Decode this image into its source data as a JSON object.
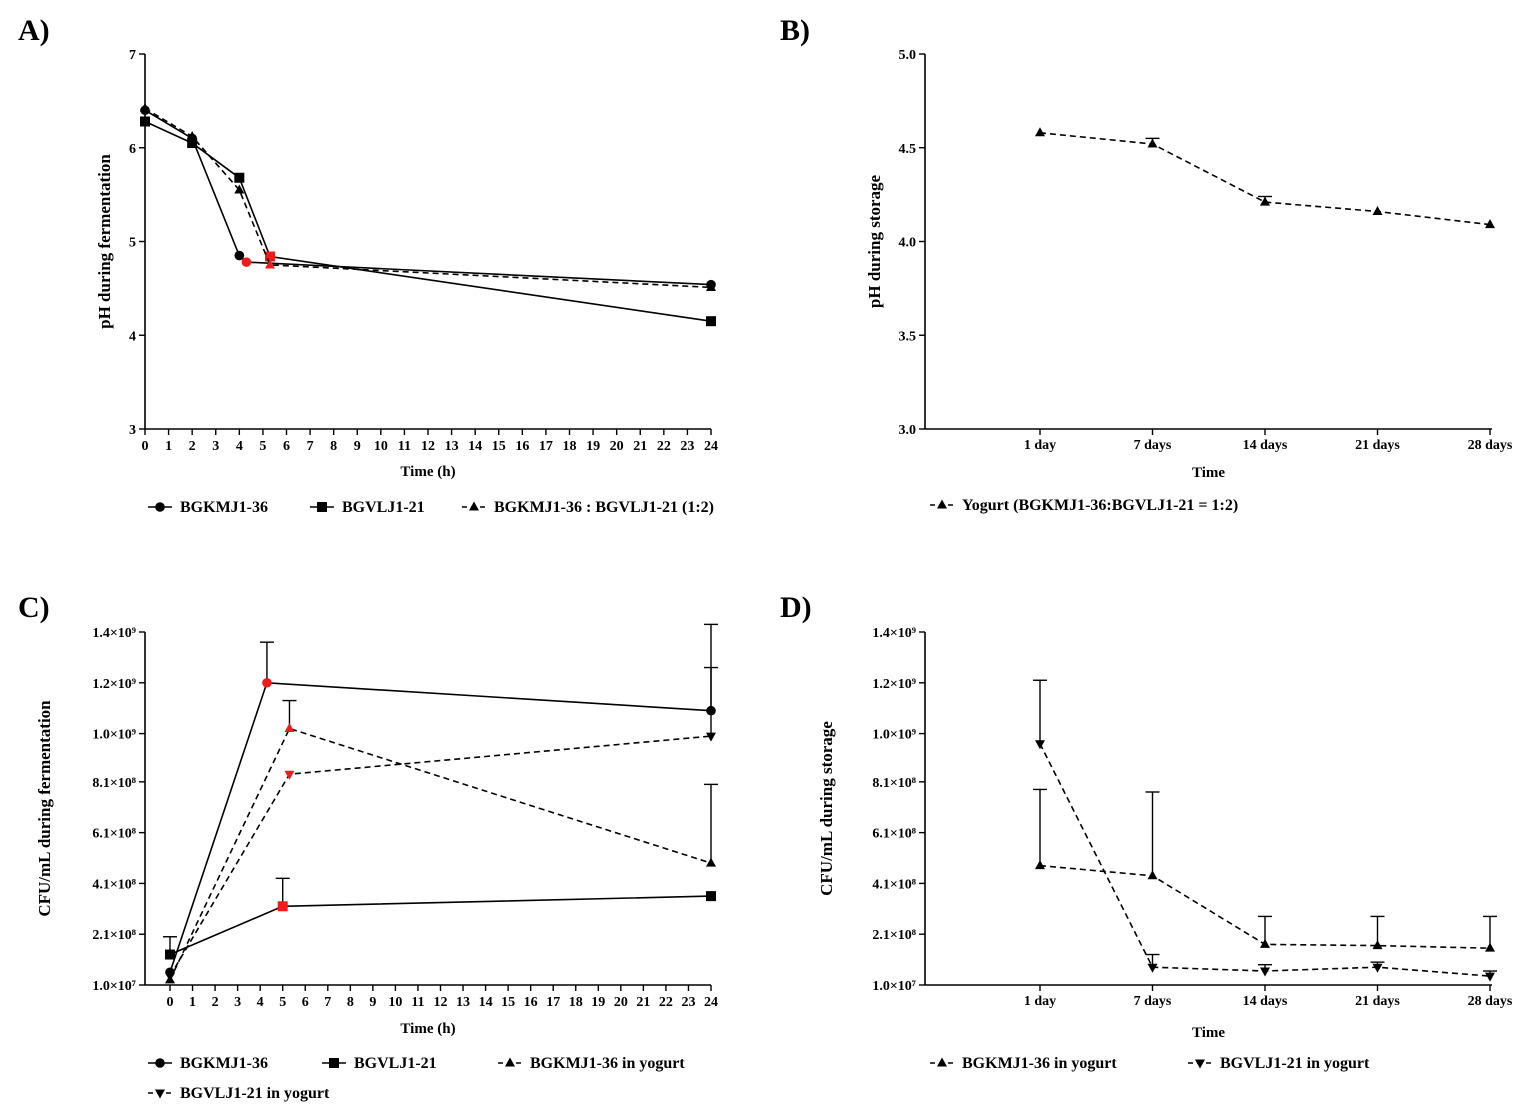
{
  "chart_data": [
    {
      "panel": "A)",
      "type": "line",
      "xlabel": "Time (h)",
      "ylabel": "pH during fermentation",
      "xlim": [
        0,
        24
      ],
      "ylim": [
        3,
        7
      ],
      "xticks": [
        0,
        1,
        2,
        3,
        4,
        5,
        6,
        7,
        8,
        9,
        10,
        11,
        12,
        13,
        14,
        15,
        16,
        17,
        18,
        19,
        20,
        21,
        22,
        23,
        24
      ],
      "yticks": [
        3,
        4,
        5,
        6,
        7
      ],
      "ytick_labels": [
        "3",
        "4",
        "5",
        "6",
        "7"
      ],
      "legend_rows": [
        [
          0,
          1,
          2
        ]
      ],
      "series": [
        {
          "name": "BGKMJ1-36",
          "marker": "circle",
          "dash": false,
          "points": [
            {
              "x": 0,
              "y": 6.4
            },
            {
              "x": 2,
              "y": 6.1
            },
            {
              "x": 4,
              "y": 4.85
            },
            {
              "x": 4.3,
              "y": 4.78,
              "red": true
            },
            {
              "x": 24,
              "y": 4.54
            }
          ]
        },
        {
          "name": "BGVLJ1-21",
          "marker": "square",
          "dash": false,
          "points": [
            {
              "x": 0,
              "y": 6.28
            },
            {
              "x": 2,
              "y": 6.05
            },
            {
              "x": 4,
              "y": 5.68
            },
            {
              "x": 5.3,
              "y": 4.84,
              "red": true
            },
            {
              "x": 24,
              "y": 4.15
            }
          ]
        },
        {
          "name": "BGKMJ1-36 : BGVLJ1-21 (1:2)",
          "marker": "triangle",
          "dash": true,
          "points": [
            {
              "x": 0,
              "y": 6.42
            },
            {
              "x": 2,
              "y": 6.12
            },
            {
              "x": 4,
              "y": 5.55
            },
            {
              "x": 5.3,
              "y": 4.75,
              "red": true
            },
            {
              "x": 24,
              "y": 4.51
            }
          ]
        }
      ]
    },
    {
      "panel": "B)",
      "type": "line",
      "xlabel": "Time",
      "ylabel": "pH during storage",
      "categories": [
        "1 day",
        "7 days",
        "14 days",
        "21 days",
        "28 days"
      ],
      "ylim": [
        3.0,
        5.0
      ],
      "yticks": [
        3.0,
        3.5,
        4.0,
        4.5,
        5.0
      ],
      "ytick_labels": [
        "3.0",
        "3.5",
        "4.0",
        "4.5",
        "5.0"
      ],
      "legend_rows": [
        [
          0
        ]
      ],
      "series": [
        {
          "name": "Yogurt (BGKMJ1-36:BGVLJ1-21 = 1:2)",
          "marker": "triangle",
          "dash": true,
          "values": [
            4.58,
            4.52,
            4.21,
            4.16,
            4.09
          ],
          "errors": [
            0,
            0.03,
            0.03,
            0,
            0
          ]
        }
      ]
    },
    {
      "panel": "C)",
      "type": "line",
      "xlabel": "Time (h)",
      "ylabel": "CFU/mL during fermentation",
      "xlim": [
        0,
        24
      ],
      "ylim": [
        10000000,
        1400000000
      ],
      "xticks": [
        0,
        1,
        2,
        3,
        4,
        5,
        6,
        7,
        8,
        9,
        10,
        11,
        12,
        13,
        14,
        15,
        16,
        17,
        18,
        19,
        20,
        21,
        22,
        23,
        24
      ],
      "yticks": [
        10000000,
        210000000,
        410000000,
        610000000,
        810000000,
        1000000000,
        1200000000,
        1400000000
      ],
      "ytick_labels": [
        "1.0×10⁷",
        "2.1×10⁸",
        "4.1×10⁸",
        "6.1×10⁸",
        "8.1×10⁸",
        "1.0×10⁹",
        "1.2×10⁹",
        "1.4×10⁹"
      ],
      "legend_rows": [
        [
          0,
          1,
          2
        ],
        [
          3
        ]
      ],
      "series": [
        {
          "name": "BGKMJ1-36",
          "marker": "circle",
          "dash": false,
          "points": [
            {
              "x": 0,
              "y": 60000000
            },
            {
              "x": 4.3,
              "y": 1200000000,
              "red": true,
              "err": 160000000
            },
            {
              "x": 24,
              "y": 1090000000,
              "err": 340000000
            }
          ]
        },
        {
          "name": "BGVLJ1-21",
          "marker": "square",
          "dash": false,
          "points": [
            {
              "x": 0,
              "y": 130000000,
              "err": 70000000
            },
            {
              "x": 5,
              "y": 320000000,
              "red": true,
              "err": 110000000
            },
            {
              "x": 24,
              "y": 360000000
            }
          ]
        },
        {
          "name": "BGKMJ1-36 in yogurt",
          "marker": "triangle",
          "dash": true,
          "points": [
            {
              "x": 0,
              "y": 30000000
            },
            {
              "x": 5.3,
              "y": 1020000000,
              "red": true,
              "err": 110000000
            },
            {
              "x": 24,
              "y": 490000000,
              "err": 310000000
            }
          ]
        },
        {
          "name": "BGVLJ1-21 in yogurt",
          "marker": "triangledown",
          "dash": true,
          "points": [
            {
              "x": 0,
              "y": 45000000
            },
            {
              "x": 5.3,
              "y": 840000000,
              "red": true
            },
            {
              "x": 24,
              "y": 990000000,
              "err": 270000000
            }
          ]
        }
      ]
    },
    {
      "panel": "D)",
      "type": "line",
      "xlabel": "Time",
      "ylabel": "CFU/mL during storage",
      "categories": [
        "1 day",
        "7 days",
        "14 days",
        "21 days",
        "28 days"
      ],
      "ylim": [
        10000000,
        1400000000
      ],
      "yticks": [
        10000000,
        210000000,
        410000000,
        610000000,
        810000000,
        1000000000,
        1200000000,
        1400000000
      ],
      "ytick_labels": [
        "1.0×10⁷",
        "2.1×10⁸",
        "4.1×10⁸",
        "6.1×10⁸",
        "8.1×10⁸",
        "1.0×10⁹",
        "1.2×10⁹",
        "1.4×10⁹"
      ],
      "legend_rows": [
        [
          0,
          1
        ]
      ],
      "series": [
        {
          "name": "BGKMJ1-36 in yogurt",
          "marker": "triangle",
          "dash": true,
          "values": [
            480000000,
            440000000,
            170000000,
            165000000,
            155000000
          ],
          "errors": [
            300000000,
            330000000,
            110000000,
            115000000,
            125000000
          ]
        },
        {
          "name": "BGVLJ1-21 in yogurt",
          "marker": "triangledown",
          "dash": true,
          "values": [
            960000000,
            80000000,
            65000000,
            80000000,
            45000000
          ],
          "errors": [
            250000000,
            50000000,
            25000000,
            20000000,
            20000000
          ]
        }
      ]
    }
  ]
}
